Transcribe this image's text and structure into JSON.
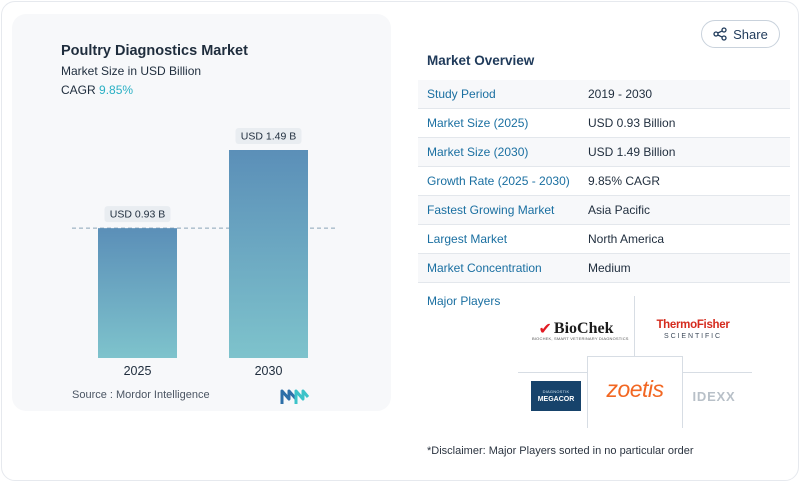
{
  "share": {
    "label": "Share",
    "icon": "share-icon"
  },
  "chart": {
    "title": "Poultry Diagnostics Market",
    "subtitle": "Market Size in USD Billion",
    "cagr_label": "CAGR",
    "cagr_value": "9.85%",
    "source": "Source :  Mordor Intelligence"
  },
  "chart_data": {
    "type": "bar",
    "title": "Poultry Diagnostics Market",
    "ylabel": "Market Size in USD Billion",
    "categories": [
      "2025",
      "2030"
    ],
    "values": [
      0.93,
      1.49
    ],
    "data_labels": [
      "USD 0.93 B",
      "USD 1.49 B"
    ],
    "ylim": [
      0,
      1.49
    ],
    "reference_line": 0.93,
    "colors": {
      "bar_top": "#5b8fb8",
      "bar_bottom": "#7ec3cc",
      "label_bg": "#e9edf1"
    }
  },
  "overview": {
    "title": "Market Overview",
    "rows": [
      {
        "label": "Study Period",
        "value": "2019 - 2030"
      },
      {
        "label": "Market Size (2025)",
        "value": "USD 0.93 Billion"
      },
      {
        "label": "Market Size (2030)",
        "value": "USD 1.49 Billion"
      },
      {
        "label": "Growth Rate (2025 - 2030)",
        "value": "9.85% CAGR"
      },
      {
        "label": "Fastest Growing Market",
        "value": "Asia Pacific"
      },
      {
        "label": "Largest Market",
        "value": "North America"
      },
      {
        "label": "Market Concentration",
        "value": "Medium"
      }
    ]
  },
  "players": {
    "title": "Major Players",
    "biochek": {
      "name": "BioChek",
      "tagline": "BIOCHEK, SMART VETERINARY DIAGNOSTICS"
    },
    "thermo": {
      "name": "ThermoFisher",
      "sub": "SCIENTIFIC"
    },
    "megacor": {
      "top": "DIAGNOSTIK",
      "name": "MEGACOR"
    },
    "zoetis": {
      "name": "zoetis"
    },
    "idexx": {
      "name": "IDEXX"
    }
  },
  "disclaimer": "*Disclaimer: Major Players sorted in no particular order"
}
